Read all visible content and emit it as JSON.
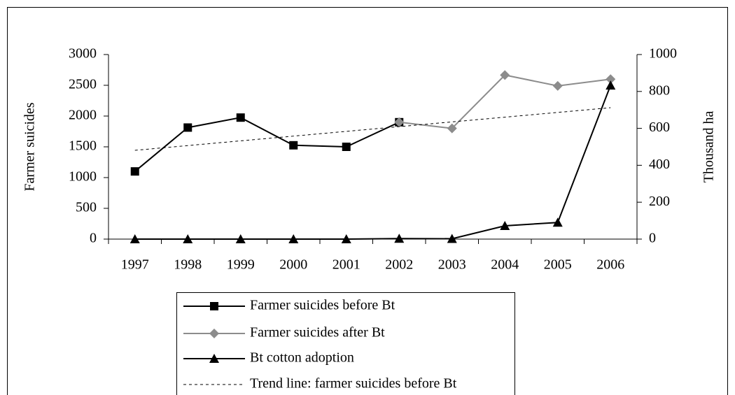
{
  "chart_data": {
    "type": "line",
    "categories": [
      "1997",
      "1998",
      "1999",
      "2000",
      "2001",
      "2002",
      "2003",
      "2004",
      "2005",
      "2006"
    ],
    "ylabel": "Farmer suicides",
    "y2label": "Thousand ha",
    "ylim": [
      0,
      3000
    ],
    "yticks": [
      0,
      500,
      1000,
      1500,
      2000,
      2500,
      3000
    ],
    "y2lim": [
      0,
      1000
    ],
    "y2ticks": [
      0,
      200,
      400,
      600,
      800,
      1000
    ],
    "legend": "bottom",
    "series": [
      {
        "name": "Farmer suicides before Bt",
        "color": "#000000",
        "marker": "square",
        "values": [
          1100,
          1813,
          1975,
          1525,
          1500,
          1900,
          null,
          null,
          null,
          null
        ]
      },
      {
        "name": "Farmer suicides after Bt",
        "color": "#8c8c8c",
        "marker": "diamond",
        "values": [
          null,
          null,
          null,
          null,
          null,
          1900,
          1800,
          2666,
          2490,
          2600
        ]
      },
      {
        "name": "Bt cotton adoption",
        "color": "#000000",
        "marker": "triangle",
        "axis": "y2",
        "values": [
          0,
          0,
          0,
          0,
          0,
          3,
          2,
          72,
          90,
          833
        ]
      },
      {
        "name": "Trend line: farmer suicides before Bt",
        "color": "#000000",
        "dashed": true,
        "values": [
          1443,
          1520,
          1597,
          1674,
          1751,
          1828,
          1905,
          1982,
          2059,
          2136
        ]
      }
    ]
  }
}
